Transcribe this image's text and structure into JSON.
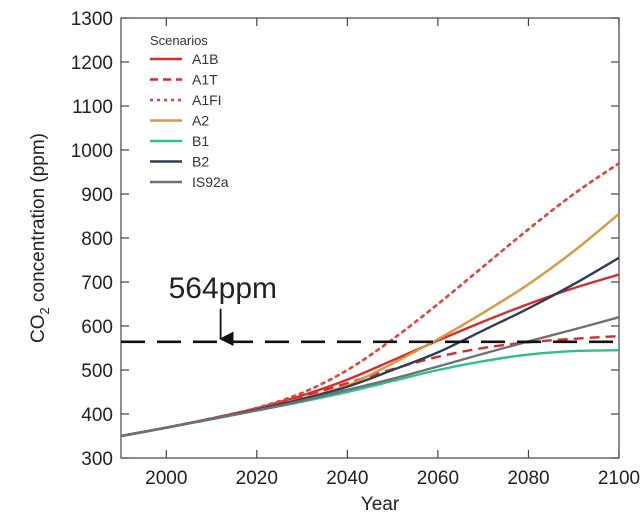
{
  "chart_data": {
    "type": "line",
    "xlabel": "Year",
    "ylabel_main": "CO",
    "ylabel_sub": "2",
    "ylabel_rest": " concentration (ppm)",
    "xlim": [
      1990,
      2100
    ],
    "ylim": [
      300,
      1300
    ],
    "x_ticks": [
      2000,
      2020,
      2040,
      2060,
      2080,
      2100
    ],
    "y_ticks": [
      300,
      400,
      500,
      600,
      700,
      800,
      900,
      1000,
      1100,
      1200,
      1300
    ],
    "grid": false,
    "legend": {
      "title": "Scenarios",
      "placement": "top-left"
    },
    "x": [
      1990,
      2000,
      2010,
      2020,
      2030,
      2040,
      2050,
      2060,
      2070,
      2080,
      2090,
      2100
    ],
    "series": [
      {
        "name": "A1B",
        "color": "#d92b2b",
        "dash": "solid",
        "values": [
          350,
          369,
          390,
          413,
          442,
          478,
          522,
          567,
          610,
          650,
          686,
          717
        ]
      },
      {
        "name": "A1T",
        "color": "#d92b2b",
        "dash": "dashed",
        "values": [
          350,
          369,
          390,
          413,
          440,
          470,
          502,
          530,
          550,
          563,
          571,
          577
        ]
      },
      {
        "name": "A1FI",
        "color": "#e0453a",
        "dash": "dotted",
        "values": [
          350,
          369,
          390,
          414,
          448,
          500,
          570,
          650,
          735,
          820,
          900,
          970
        ]
      },
      {
        "name": "A2",
        "color": "#d99a3c",
        "dash": "solid",
        "values": [
          350,
          369,
          389,
          410,
          435,
          465,
          515,
          570,
          630,
          695,
          770,
          855
        ]
      },
      {
        "name": "B1",
        "color": "#2dbf8f",
        "dash": "solid",
        "values": [
          350,
          369,
          388,
          408,
          428,
          450,
          475,
          500,
          520,
          535,
          543,
          545
        ]
      },
      {
        "name": "B2",
        "color": "#2c3e5a",
        "dash": "solid",
        "values": [
          350,
          369,
          389,
          410,
          434,
          462,
          500,
          540,
          590,
          640,
          695,
          755
        ]
      },
      {
        "name": "IS92a",
        "color": "#707070",
        "dash": "solid",
        "values": [
          350,
          369,
          389,
          408,
          430,
          455,
          480,
          508,
          537,
          565,
          592,
          620
        ]
      }
    ],
    "annotation": {
      "label": "564ppm",
      "value": 564,
      "arrow_x": 2012,
      "line_x_start": 1990,
      "line_x_end": 2100
    }
  }
}
